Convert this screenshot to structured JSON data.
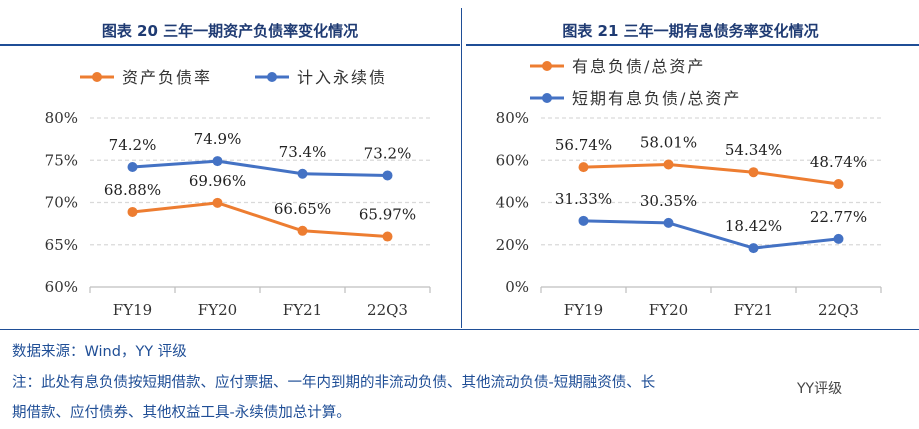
{
  "chart_data": [
    {
      "type": "line",
      "title": "图表 20 三年一期资产负债率变化情况",
      "categories": [
        "FY19",
        "FY20",
        "FY21",
        "22Q3"
      ],
      "ylim": [
        60,
        80
      ],
      "yticks": [
        "60%",
        "65%",
        "70%",
        "75%",
        "80%"
      ],
      "grid": true,
      "legend": "top-left",
      "series": [
        {
          "name": "资产负债率",
          "color": "#ed7d31",
          "values": [
            68.88,
            69.96,
            66.65,
            65.97
          ],
          "labels": [
            "68.88%",
            "69.96%",
            "66.65%",
            "65.97%"
          ]
        },
        {
          "name": "计入永续债",
          "color": "#4472c4",
          "values": [
            74.2,
            74.9,
            73.4,
            73.2
          ],
          "labels": [
            "74.2%",
            "74.9%",
            "73.4%",
            "73.2%"
          ]
        }
      ]
    },
    {
      "type": "line",
      "title": "图表 21 三年一期有息债务率变化情况",
      "categories": [
        "FY19",
        "FY20",
        "FY21",
        "22Q3"
      ],
      "ylim": [
        0,
        80
      ],
      "yticks": [
        "0%",
        "20%",
        "40%",
        "60%",
        "80%"
      ],
      "grid": true,
      "legend": "top-left",
      "series": [
        {
          "name": "有息负债/总资产",
          "color": "#ed7d31",
          "values": [
            56.74,
            58.01,
            54.34,
            48.74
          ],
          "labels": [
            "56.74%",
            "58.01%",
            "54.34%",
            "48.74%"
          ]
        },
        {
          "name": "短期有息负债/总资产",
          "color": "#4472c4",
          "values": [
            31.33,
            30.35,
            18.42,
            22.77
          ],
          "labels": [
            "31.33%",
            "30.35%",
            "18.42%",
            "22.77%"
          ]
        }
      ]
    }
  ],
  "footer": {
    "source": "数据来源：Wind，YY 评级",
    "note_line1": "注：此处有息负债按短期借款、应付票据、一年内到期的非流动负债、其他流动负债-短期融资债、长",
    "note_line2": "期借款、应付债券、其他权益工具-永续债加总计算。",
    "watermark": "YY评级"
  }
}
